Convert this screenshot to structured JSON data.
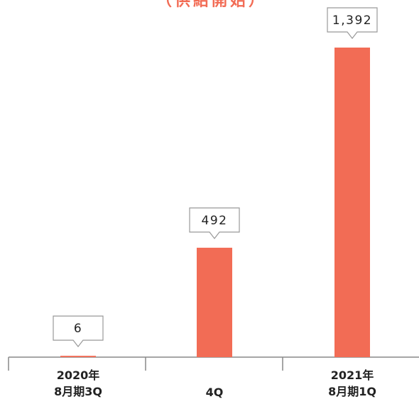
{
  "chart_data": {
    "type": "bar",
    "title": "（供給開始）",
    "categories": [
      "2020年\n8月期3Q",
      "4Q",
      "2021年\n8月期1Q"
    ],
    "values": [
      6,
      492,
      1392
    ],
    "value_labels": [
      "6",
      "492",
      "1,392"
    ],
    "color": "#f26c55"
  }
}
